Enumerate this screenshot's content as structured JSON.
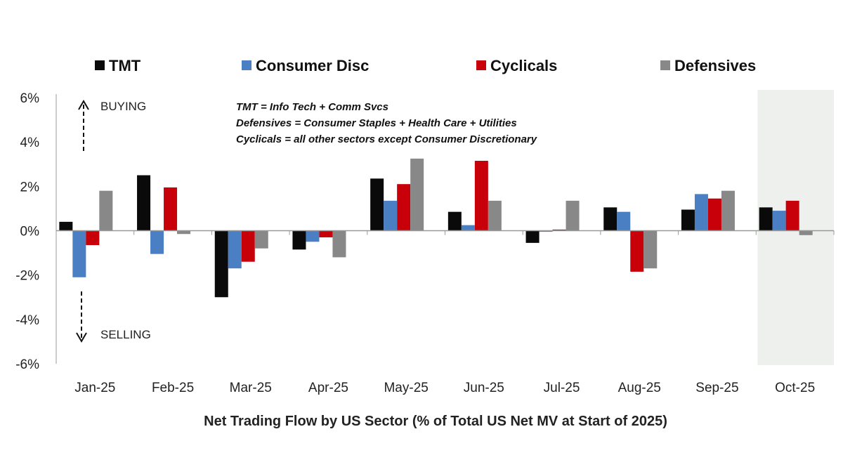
{
  "chart_data": {
    "type": "bar",
    "title": "Net Trading Flow by US Sector (% of Total US Net MV at Start of 2025)",
    "xlabel": "",
    "ylabel": "",
    "ylim": [
      -6,
      6
    ],
    "yticks": [
      6,
      4,
      2,
      0,
      -2,
      -4,
      -6
    ],
    "ytick_labels": [
      "6%",
      "4%",
      "2%",
      "0%",
      "-2%",
      "-4%",
      "-6%"
    ],
    "legend_placement": "top",
    "grid": false,
    "categories": [
      "Jan-25",
      "Feb-25",
      "Mar-25",
      "Apr-25",
      "May-25",
      "Jun-25",
      "Jul-25",
      "Aug-25",
      "Sep-25",
      "Oct-25"
    ],
    "highlighted_category": "Oct-25",
    "series": [
      {
        "name": "TMT",
        "color": "#0a0a0a",
        "values": [
          0.4,
          2.5,
          -3.0,
          -0.85,
          2.35,
          0.85,
          -0.55,
          1.05,
          0.95,
          1.05
        ]
      },
      {
        "name": "Consumer Disc",
        "color": "#4a7fc4",
        "values": [
          -2.1,
          -1.05,
          -1.7,
          -0.5,
          1.35,
          0.25,
          -0.05,
          0.85,
          1.65,
          0.9
        ]
      },
      {
        "name": "Cyclicals",
        "color": "#c8000a",
        "values": [
          -0.65,
          1.95,
          -1.4,
          -0.3,
          2.1,
          3.15,
          0.05,
          -1.85,
          1.45,
          1.35
        ]
      },
      {
        "name": "Defensives",
        "color": "#888888",
        "values": [
          1.8,
          -0.15,
          -0.8,
          -1.2,
          3.25,
          1.35,
          1.35,
          -1.7,
          1.8,
          -0.2
        ]
      }
    ],
    "annotations": {
      "notes": [
        "TMT = Info Tech + Comm Svcs",
        "Defensives = Consumer Staples + Health Care + Utilities",
        "Cyclicals = all other sectors except Consumer Discretionary"
      ],
      "buying": "BUYING",
      "selling": "SELLING"
    },
    "highlight_color": "#edf0ed"
  }
}
